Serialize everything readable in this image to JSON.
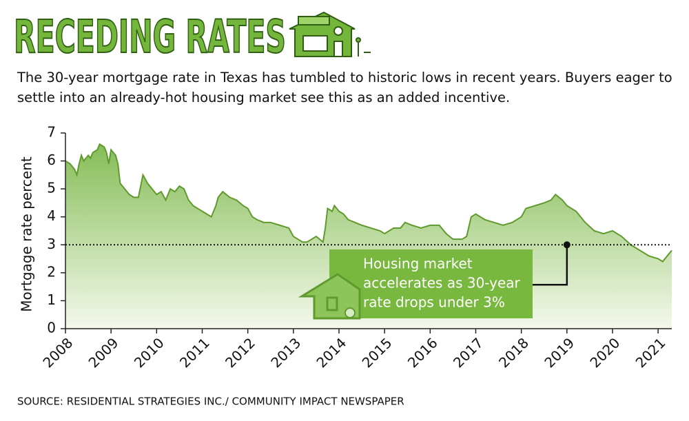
{
  "chart_data": {
    "type": "area",
    "title": "RECEDING RATES",
    "subtitle": "The 30-year mortgage rate in Texas has tumbled to historic lows in recent years. Buyers eager to settle into an already-hot housing market see this as an added incentive.",
    "y_label": "Mortgage rate percent",
    "source": "SOURCE: RESIDENTIAL STRATEGIES INC./ COMMUNITY IMPACT NEWSPAPER",
    "color": "#5e9a2c",
    "x": [
      2008.0,
      2008.1,
      2008.2,
      2008.25,
      2008.3,
      2008.35,
      2008.4,
      2008.5,
      2008.55,
      2008.6,
      2008.7,
      2008.75,
      2008.85,
      2008.9,
      2008.95,
      2009.0,
      2009.1,
      2009.15,
      2009.2,
      2009.3,
      2009.4,
      2009.5,
      2009.6,
      2009.7,
      2009.8,
      2009.9,
      2010.0,
      2010.1,
      2010.2,
      2010.3,
      2010.4,
      2010.5,
      2010.6,
      2010.7,
      2010.8,
      2010.9,
      2011.0,
      2011.1,
      2011.2,
      2011.3,
      2011.35,
      2011.45,
      2011.6,
      2011.75,
      2011.9,
      2012.0,
      2012.1,
      2012.2,
      2012.35,
      2012.5,
      2012.7,
      2012.9,
      2013.0,
      2013.1,
      2013.2,
      2013.3,
      2013.4,
      2013.5,
      2013.65,
      2013.7,
      2013.75,
      2013.85,
      2013.9,
      2014.0,
      2014.1,
      2014.2,
      2014.35,
      2014.5,
      2014.7,
      2014.9,
      2015.0,
      2015.2,
      2015.35,
      2015.45,
      2015.6,
      2015.8,
      2016.0,
      2016.2,
      2016.35,
      2016.5,
      2016.7,
      2016.8,
      2016.9,
      2017.0,
      2017.2,
      2017.4,
      2017.6,
      2017.8,
      2018.0,
      2018.1,
      2018.3,
      2018.5,
      2018.65,
      2018.75,
      2018.9,
      2019.0,
      2019.2,
      2019.4,
      2019.6,
      2019.8,
      2020.0,
      2020.2,
      2020.4,
      2020.6,
      2020.8,
      2021.0,
      2021.1,
      2021.2,
      2021.3
    ],
    "values": [
      6.0,
      5.9,
      5.7,
      5.5,
      5.9,
      6.2,
      6.0,
      6.2,
      6.1,
      6.3,
      6.4,
      6.6,
      6.5,
      6.3,
      5.9,
      6.4,
      6.2,
      5.9,
      5.2,
      5.0,
      4.8,
      4.7,
      4.7,
      5.5,
      5.2,
      5.0,
      4.8,
      4.9,
      4.6,
      5.0,
      4.9,
      5.1,
      5.0,
      4.6,
      4.4,
      4.3,
      4.2,
      4.1,
      4.0,
      4.4,
      4.7,
      4.9,
      4.7,
      4.6,
      4.4,
      4.3,
      4.0,
      3.9,
      3.8,
      3.8,
      3.7,
      3.6,
      3.3,
      3.2,
      3.1,
      3.1,
      3.2,
      3.3,
      3.1,
      3.6,
      4.3,
      4.2,
      4.4,
      4.2,
      4.1,
      3.9,
      3.8,
      3.7,
      3.6,
      3.5,
      3.4,
      3.6,
      3.6,
      3.8,
      3.7,
      3.6,
      3.7,
      3.7,
      3.4,
      3.2,
      3.2,
      3.3,
      4.0,
      4.1,
      3.9,
      3.8,
      3.7,
      3.8,
      4.0,
      4.3,
      4.4,
      4.5,
      4.6,
      4.8,
      4.6,
      4.4,
      4.2,
      3.8,
      3.5,
      3.4,
      3.5,
      3.3,
      3.0,
      2.8,
      2.6,
      2.5,
      2.4,
      2.6,
      2.8
    ],
    "xlim": [
      2008,
      2021.3
    ],
    "ylim": [
      0,
      7
    ],
    "xticks": [
      2008,
      2009,
      2010,
      2011,
      2012,
      2013,
      2014,
      2015,
      2016,
      2017,
      2018,
      2019,
      2020,
      2021
    ],
    "yticks": [
      0,
      1,
      2,
      3,
      4,
      5,
      6,
      7
    ],
    "reference_line": 3,
    "annotation": {
      "lines": [
        "Housing market",
        "accelerates as 30-year",
        "rate drops under 3%"
      ],
      "x": 2019,
      "y": 3
    }
  }
}
